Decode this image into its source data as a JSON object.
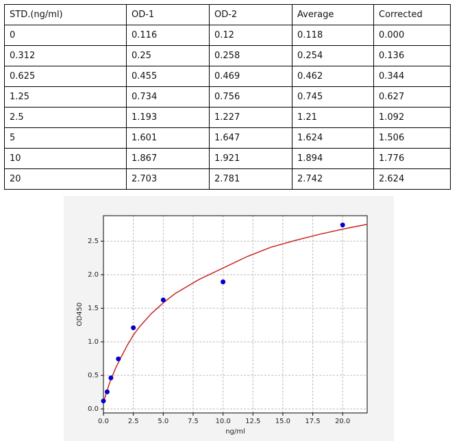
{
  "table": {
    "header": [
      "STD.(ng/ml)",
      "OD-1",
      "OD-2",
      "Average",
      "Corrected"
    ],
    "rows": [
      [
        "0",
        "0.116",
        "0.12",
        "0.118",
        "0.000"
      ],
      [
        "0.312",
        "0.25",
        "0.258",
        "0.254",
        "0.136"
      ],
      [
        "0.625",
        "0.455",
        "0.469",
        "0.462",
        "0.344"
      ],
      [
        "1.25",
        "0.734",
        "0.756",
        "0.745",
        "0.627"
      ],
      [
        "2.5",
        "1.193",
        "1.227",
        "1.21",
        "1.092"
      ],
      [
        "5",
        "1.601",
        "1.647",
        "1.624",
        "1.506"
      ],
      [
        "10",
        "1.867",
        "1.921",
        "1.894",
        "1.776"
      ],
      [
        "20",
        "2.703",
        "2.781",
        "2.742",
        "2.624"
      ]
    ]
  },
  "chart_data": {
    "type": "scatter",
    "x_label": "ng/ml",
    "y_label": "OD450",
    "x": [
      0,
      0.312,
      0.625,
      1.25,
      2.5,
      5,
      10,
      20
    ],
    "values": [
      0.118,
      0.254,
      0.462,
      0.745,
      1.21,
      1.624,
      1.894,
      2.742
    ],
    "color": "#0000cc",
    "curve": {
      "color": "#cc2222",
      "x": [
        0,
        0.5,
        1,
        1.5,
        2,
        2.5,
        3,
        4,
        5,
        6,
        8,
        10,
        12,
        14,
        16,
        18,
        20,
        22
      ],
      "values": [
        0.1,
        0.38,
        0.6,
        0.78,
        0.95,
        1.1,
        1.22,
        1.42,
        1.58,
        1.72,
        1.93,
        2.1,
        2.27,
        2.41,
        2.51,
        2.6,
        2.68,
        2.75
      ]
    },
    "xlim": [
      0,
      22.05
    ],
    "ylim": [
      -0.06,
      2.88
    ],
    "xticks": [
      {
        "value": 0,
        "label": "0.0"
      },
      {
        "value": 2.5,
        "label": "2.5"
      },
      {
        "value": 5,
        "label": "5.0"
      },
      {
        "value": 7.5,
        "label": "7.5"
      },
      {
        "value": 10,
        "label": "10.0"
      },
      {
        "value": 12.5,
        "label": "12.5"
      },
      {
        "value": 15,
        "label": "15.0"
      },
      {
        "value": 17.5,
        "label": "17.5"
      },
      {
        "value": 20,
        "label": "20.0"
      }
    ],
    "yticks": [
      {
        "value": 0,
        "label": "0.0"
      },
      {
        "value": 0.5,
        "label": "0.5"
      },
      {
        "value": 1,
        "label": "1.0"
      },
      {
        "value": 1.5,
        "label": "1.5"
      },
      {
        "value": 2,
        "label": "2.0"
      },
      {
        "value": 2.5,
        "label": "2.5"
      }
    ],
    "grid": true
  }
}
